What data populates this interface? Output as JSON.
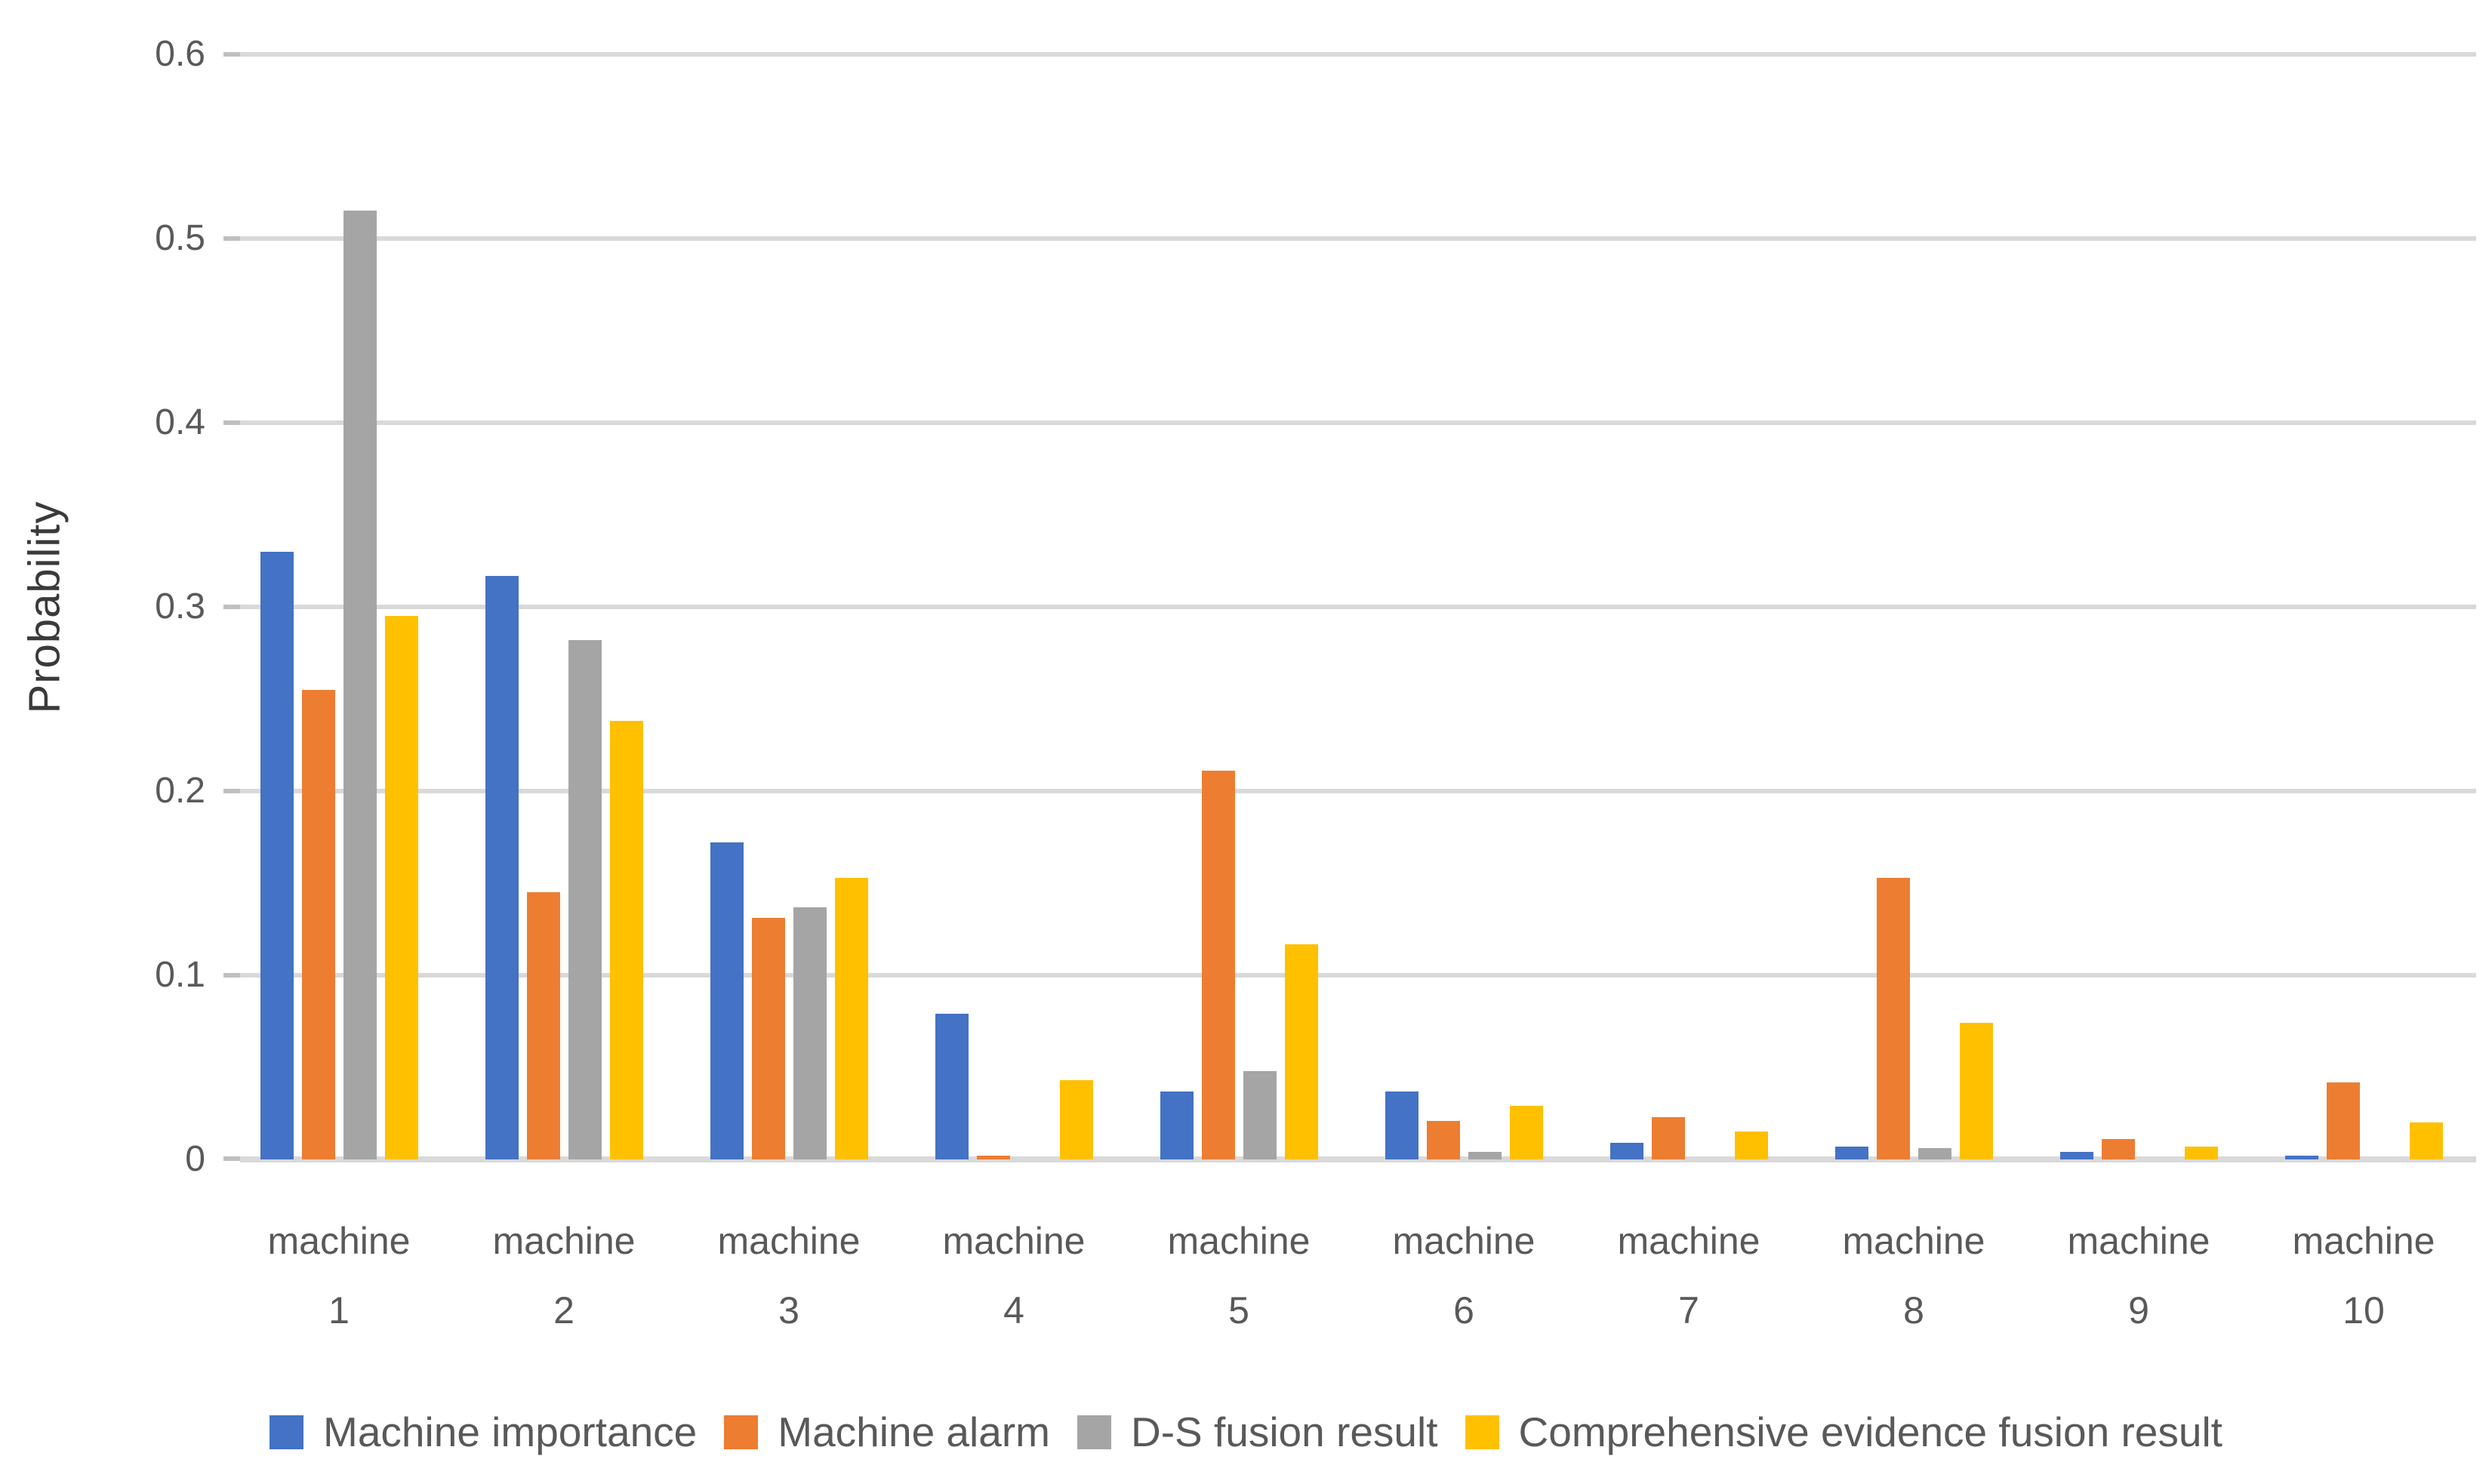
{
  "chart_data": {
    "type": "bar",
    "title": "",
    "xlabel": "",
    "ylabel": "Probability",
    "ylim": [
      0,
      0.6
    ],
    "ytick_step": 0.1,
    "yticks": [
      0,
      0.1,
      0.2,
      0.3,
      0.4,
      0.5,
      0.6
    ],
    "ytick_labels": [
      "0",
      "0.1",
      "0.2",
      "0.3",
      "0.4",
      "0.5",
      "0.6"
    ],
    "grid": "horizontal",
    "legend_position": "bottom",
    "categories": [
      "machine 1",
      "machine 2",
      "machine 3",
      "machine 4",
      "machine 5",
      "machine 6",
      "machine 7",
      "machine 8",
      "machine 9",
      "machine 10"
    ],
    "category_label_line1": "machine",
    "category_label_line2": [
      "1",
      "2",
      "3",
      "4",
      "5",
      "6",
      "7",
      "8",
      "9",
      "10"
    ],
    "series": [
      {
        "name": "Machine importance",
        "color": "#4472C4",
        "values": [
          0.33,
          0.317,
          0.172,
          0.079,
          0.037,
          0.037,
          0.009,
          0.007,
          0.004,
          0.002
        ]
      },
      {
        "name": "Machine alarm",
        "color": "#ED7D31",
        "values": [
          0.255,
          0.145,
          0.131,
          0.002,
          0.211,
          0.021,
          0.023,
          0.153,
          0.011,
          0.042
        ]
      },
      {
        "name": "D-S fusion result",
        "color": "#A5A5A5",
        "values": [
          0.515,
          0.282,
          0.137,
          0,
          0.048,
          0.004,
          0,
          0.006,
          0,
          0
        ]
      },
      {
        "name": "Comprehensive evidence fusion result",
        "color": "#FFC000",
        "values": [
          0.295,
          0.238,
          0.153,
          0.043,
          0.117,
          0.029,
          0.015,
          0.074,
          0.007,
          0.02
        ]
      }
    ],
    "colors": {
      "background": "#FFFFFF",
      "gridline": "#D9D9D9",
      "tickmark": "#BFBFBF",
      "axis_text": "#595959",
      "axis_title_text": "#3A3A3A",
      "legend_text": "#595959"
    }
  }
}
